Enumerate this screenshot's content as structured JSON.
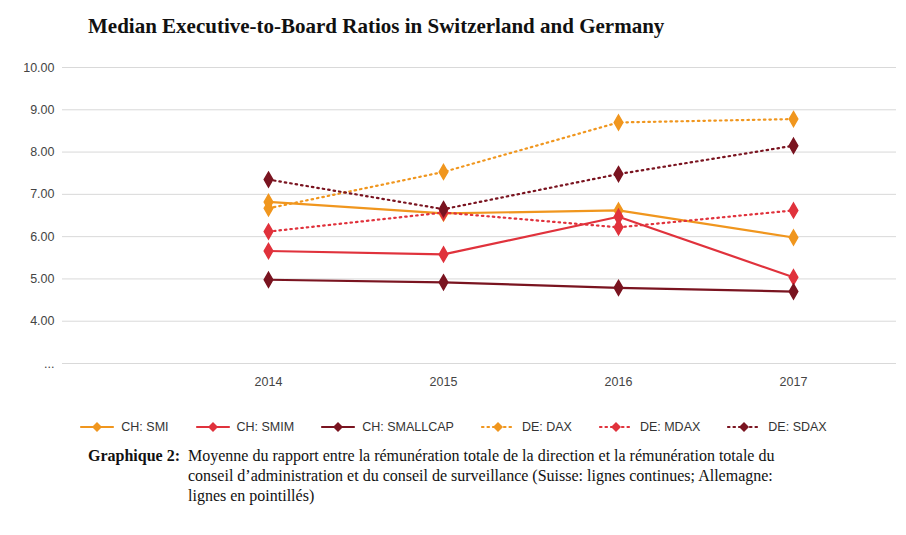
{
  "chart_data": {
    "type": "line",
    "title": "Median Executive-to-Board Ratios in Switzerland and Germany",
    "categories": [
      "2014",
      "2015",
      "2016",
      "2017"
    ],
    "series": [
      {
        "name": "CH: SMI",
        "color": "#f0961e",
        "marker": "diamond",
        "line_style": "solid",
        "values": [
          6.82,
          6.55,
          6.62,
          5.98
        ]
      },
      {
        "name": "CH: SMIM",
        "color": "#e0323c",
        "marker": "diamond",
        "line_style": "solid",
        "values": [
          5.66,
          5.58,
          6.47,
          5.04
        ]
      },
      {
        "name": "CH: SMALLCAP",
        "color": "#7a1420",
        "marker": "diamond",
        "line_style": "solid",
        "values": [
          4.98,
          4.92,
          4.79,
          4.7
        ]
      },
      {
        "name": "DE: DAX",
        "color": "#f0961e",
        "marker": "diamond",
        "line_style": "dotted",
        "values": [
          6.67,
          7.53,
          8.7,
          8.78
        ]
      },
      {
        "name": "DE: MDAX",
        "color": "#e0323c",
        "marker": "diamond",
        "line_style": "dotted",
        "values": [
          6.12,
          6.57,
          6.22,
          6.62
        ]
      },
      {
        "name": "DE: SDAX",
        "color": "#7a1420",
        "marker": "diamond",
        "line_style": "dotted",
        "values": [
          7.35,
          6.65,
          7.48,
          8.15
        ]
      }
    ],
    "ylim": [
      3,
      10
    ],
    "yticks": [
      {
        "value": 3,
        "label": "..."
      },
      {
        "value": 4,
        "label": "4.00"
      },
      {
        "value": 5,
        "label": "5.00"
      },
      {
        "value": 6,
        "label": "6.00"
      },
      {
        "value": 7,
        "label": "7.00"
      },
      {
        "value": 8,
        "label": "8.00"
      },
      {
        "value": 9,
        "label": "9.00"
      },
      {
        "value": 10,
        "label": "10.00"
      }
    ],
    "grid": true,
    "legend": "bottom",
    "caption": {
      "label": "Graphique 2:",
      "text": "Moyenne du rapport entre la rémunération totale de la direction et la rémunération totale du conseil d’administration et du conseil de surveillance (Suisse: lignes continues; Allemagne: lignes en pointillés)"
    }
  }
}
